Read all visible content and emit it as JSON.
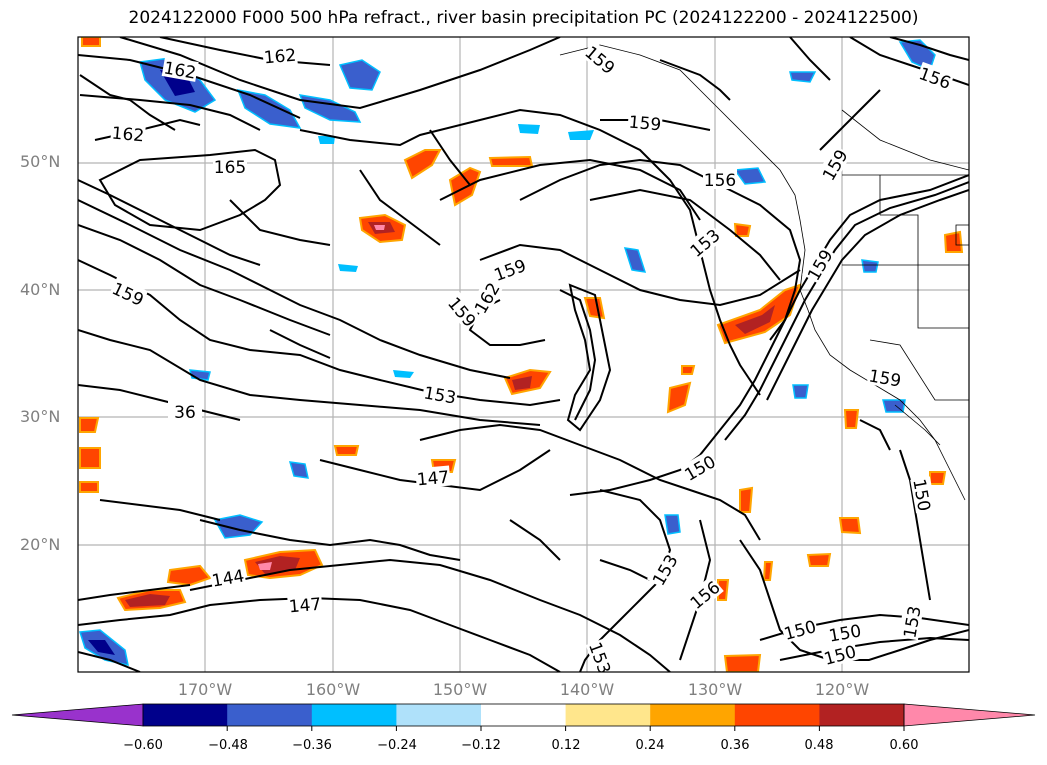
{
  "title": "2024122000 F000 500 hPa refract., river basin precipitation PC (2024122200 - 2024122500)",
  "map": {
    "lat_labels": [
      "50°N",
      "40°N",
      "30°N",
      "20°N"
    ],
    "lon_labels": [
      "170°W",
      "160°W",
      "150°W",
      "140°W",
      "130°W",
      "120°W"
    ],
    "contour_labels": [
      {
        "text": "162",
        "rot": -5
      },
      {
        "text": "162",
        "rot": 10
      },
      {
        "text": "162",
        "rot": 5
      },
      {
        "text": "165",
        "rot": 0
      },
      {
        "text": "159",
        "rot": 40
      },
      {
        "text": "159",
        "rot": 5
      },
      {
        "text": "156",
        "rot": 20
      },
      {
        "text": "159",
        "rot": -60
      },
      {
        "text": "156",
        "rot": 0
      },
      {
        "text": "153",
        "rot": -40
      },
      {
        "text": "159",
        "rot": -20
      },
      {
        "text": "162",
        "rot": -60
      },
      {
        "text": "159",
        "rot": 25
      },
      {
        "text": "159",
        "rot": 50
      },
      {
        "text": "159",
        "rot": -60
      },
      {
        "text": "153",
        "rot": 10
      },
      {
        "text": "36",
        "rot": 0
      },
      {
        "text": "147",
        "rot": -5
      },
      {
        "text": "150",
        "rot": -30
      },
      {
        "text": "159",
        "rot": 10
      },
      {
        "text": "150",
        "rot": 80
      },
      {
        "text": "144",
        "rot": -10
      },
      {
        "text": "147",
        "rot": -5
      },
      {
        "text": "153",
        "rot": -60
      },
      {
        "text": "156",
        "rot": -40
      },
      {
        "text": "150",
        "rot": -15
      },
      {
        "text": "153",
        "rot": 70
      },
      {
        "text": "153",
        "rot": -80
      },
      {
        "text": "150",
        "rot": -10
      },
      {
        "text": "150",
        "rot": -15
      }
    ]
  },
  "colorbar": {
    "labels": [
      "−0.60",
      "−0.48",
      "−0.36",
      "−0.24",
      "−0.12",
      "0.12",
      "0.24",
      "0.36",
      "0.48",
      "0.60"
    ],
    "colors": [
      "#9932cc",
      "#00008b",
      "#3a5fcd",
      "#00bfff",
      "#afe1fa",
      "#ffffff",
      "#ffe68c",
      "#ffa500",
      "#ff4500",
      "#b22222",
      "#ff88aa"
    ]
  }
}
